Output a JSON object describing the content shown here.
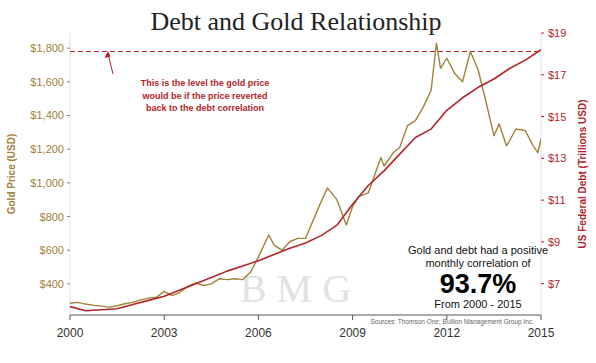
{
  "chart_data": {
    "type": "line",
    "title": "Debt and Gold Relationship",
    "ylabel": "Gold Price (USD)",
    "y2label": "US Federal Debt (Trillions USD)",
    "watermark": "BMG",
    "xlim": [
      2000,
      2015
    ],
    "xticks": [
      2000,
      2003,
      2006,
      2009,
      2012,
      2015
    ],
    "ylim": [
      215,
      1890
    ],
    "yticks": [
      {
        "value": 400,
        "label": "$400"
      },
      {
        "value": 600,
        "label": "$600"
      },
      {
        "value": 800,
        "label": "$800"
      },
      {
        "value": 1000,
        "label": "$1,000"
      },
      {
        "value": 1200,
        "label": "$1,200"
      },
      {
        "value": 1400,
        "label": "$1,400"
      },
      {
        "value": 1600,
        "label": "$1,600"
      },
      {
        "value": 1800,
        "label": "$1,800"
      }
    ],
    "y2lim": [
      5.5,
      19
    ],
    "y2ticks": [
      {
        "value": 7,
        "label": "$7"
      },
      {
        "value": 9,
        "label": "$9"
      },
      {
        "value": 11,
        "label": "$11"
      },
      {
        "value": 13,
        "label": "$13"
      },
      {
        "value": 15,
        "label": "$15"
      },
      {
        "value": 17,
        "label": "$17"
      },
      {
        "value": 19,
        "label": "$19"
      }
    ],
    "grid": false,
    "series": [
      {
        "color": "#a0823a",
        "x": [
          2000.0,
          2000.25,
          2000.5,
          2000.75,
          2001.0,
          2001.25,
          2001.5,
          2001.75,
          2002.0,
          2002.25,
          2002.5,
          2002.75,
          2003.0,
          2003.25,
          2003.5,
          2003.75,
          2004.0,
          2004.25,
          2004.5,
          2004.75,
          2005.0,
          2005.25,
          2005.5,
          2005.75,
          2006.0,
          2006.33,
          2006.5,
          2006.75,
          2007.0,
          2007.25,
          2007.5,
          2007.75,
          2008.0,
          2008.2,
          2008.5,
          2008.8,
          2009.0,
          2009.2,
          2009.5,
          2009.9,
          2010.0,
          2010.3,
          2010.5,
          2010.75,
          2011.0,
          2011.25,
          2011.5,
          2011.67,
          2011.8,
          2012.0,
          2012.25,
          2012.5,
          2012.75,
          2013.0,
          2013.25,
          2013.5,
          2013.67,
          2013.9,
          2014.0,
          2014.2,
          2014.5,
          2014.75,
          2014.9,
          2015.0
        ],
        "values": [
          285,
          290,
          280,
          272,
          268,
          262,
          270,
          282,
          290,
          305,
          315,
          320,
          355,
          330,
          350,
          385,
          405,
          390,
          400,
          430,
          425,
          430,
          425,
          470,
          560,
          690,
          630,
          600,
          650,
          670,
          670,
          780,
          890,
          970,
          900,
          750,
          860,
          920,
          940,
          1150,
          1100,
          1180,
          1210,
          1340,
          1370,
          1450,
          1550,
          1830,
          1680,
          1740,
          1650,
          1600,
          1780,
          1670,
          1480,
          1280,
          1350,
          1220,
          1250,
          1320,
          1310,
          1220,
          1180,
          1260
        ]
      },
      {
        "color": "#b3242a",
        "axis": "y2",
        "x": [
          2000.0,
          2000.5,
          2001.0,
          2001.5,
          2002.0,
          2002.5,
          2003.0,
          2003.5,
          2004.0,
          2004.5,
          2005.0,
          2005.5,
          2006.0,
          2006.5,
          2007.0,
          2007.5,
          2008.0,
          2008.5,
          2009.0,
          2009.5,
          2010.0,
          2010.5,
          2011.0,
          2011.5,
          2012.0,
          2012.5,
          2013.0,
          2013.5,
          2014.0,
          2014.5,
          2015.0
        ],
        "values": [
          5.9,
          5.7,
          5.75,
          5.8,
          6.0,
          6.2,
          6.4,
          6.7,
          7.0,
          7.3,
          7.6,
          7.85,
          8.1,
          8.4,
          8.7,
          8.95,
          9.3,
          9.8,
          10.8,
          11.7,
          12.4,
          13.2,
          14.0,
          14.4,
          15.3,
          15.9,
          16.4,
          16.8,
          17.3,
          17.7,
          18.2
        ]
      }
    ],
    "reference_line": 1780,
    "annotation": [
      "This is the level the gold price",
      "would be if the price reverted",
      "back to the debt correlation"
    ],
    "correlation_note": {
      "lines": [
        "Gold and debt had a positive",
        "monthly correlation of"
      ],
      "value": 93.7,
      "value_label": "93.7%",
      "period": "From 2000 - 2015"
    },
    "source": "Sources: Thomson One; Bullion Management Group Inc."
  }
}
